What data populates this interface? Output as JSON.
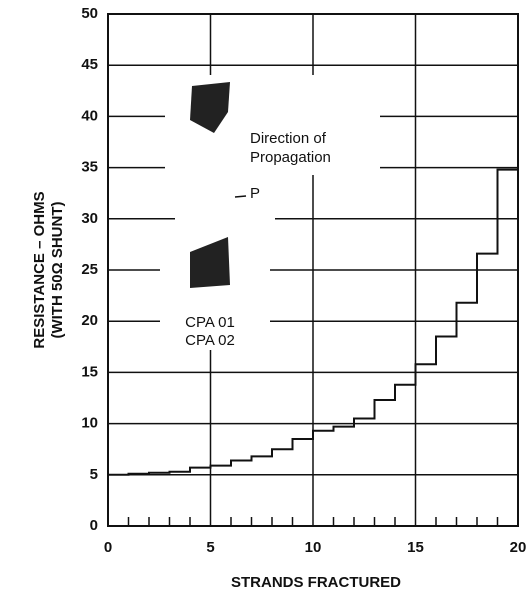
{
  "chart_data": {
    "type": "line",
    "step": "post",
    "xlabel": "STRANDS FRACTURED",
    "ylabel": [
      "RESISTANCE – OHMS",
      "(WITH 50Ω SHUNT)"
    ],
    "annotations": [
      "Direction of",
      "Propagation",
      "P",
      "CPA 01",
      "CPA 02"
    ],
    "x": [
      0,
      1,
      2,
      3,
      4,
      5,
      6,
      7,
      8,
      9,
      10,
      11,
      12,
      13,
      14,
      15,
      16,
      17,
      18,
      19
    ],
    "series": [
      {
        "color": "#111111",
        "values": [
          5.0,
          5.1,
          5.2,
          5.3,
          5.7,
          5.9,
          6.4,
          6.8,
          7.5,
          8.5,
          9.3,
          9.7,
          10.5,
          12.3,
          13.8,
          15.8,
          18.5,
          21.8,
          26.6,
          34.8
        ]
      }
    ],
    "xlim": [
      0,
      20
    ],
    "xticks": [
      0,
      5,
      10,
      15,
      20
    ],
    "xminorticks": [
      1,
      2,
      3,
      4,
      6,
      7,
      8,
      9,
      11,
      12,
      13,
      14,
      16,
      17,
      18,
      19
    ],
    "ylim": [
      0,
      50
    ],
    "yticks": [
      0,
      5,
      10,
      15,
      20,
      25,
      30,
      35,
      40,
      45,
      50
    ],
    "grid": true
  }
}
